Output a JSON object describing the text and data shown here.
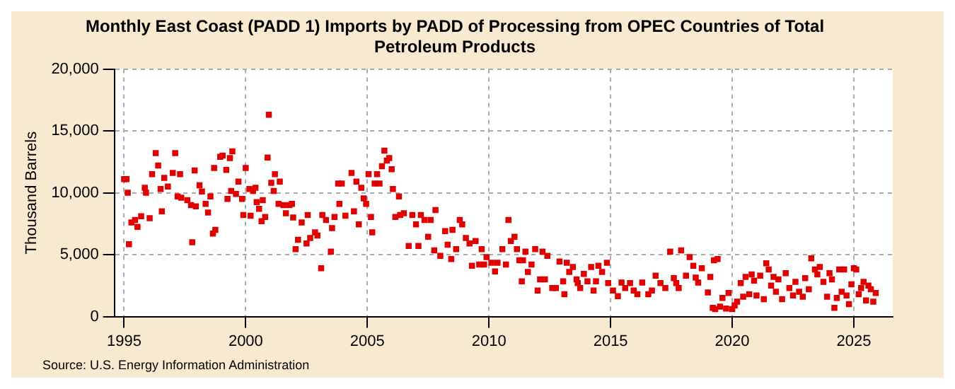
{
  "chart_data": {
    "type": "scatter",
    "title": "Monthly East Coast (PADD 1) Imports by PADD of Processing from OPEC Countries of Total Petroleum Products",
    "ylabel": "Thousand Barrels",
    "annotations": [
      "Source: U.S. Energy Information Administration"
    ],
    "x": [
      1995.0,
      1995.1,
      1995.15,
      1995.2,
      1995.3,
      1995.45,
      1995.55,
      1995.7,
      1995.85,
      1995.9,
      1996.05,
      1996.15,
      1996.3,
      1996.4,
      1996.5,
      1996.55,
      1996.65,
      1996.8,
      1997.0,
      1997.1,
      1997.2,
      1997.3,
      1997.35,
      1997.6,
      1997.75,
      1997.8,
      1997.9,
      1997.95,
      1998.1,
      1998.2,
      1998.35,
      1998.45,
      1998.55,
      1998.65,
      1998.7,
      1998.75,
      1998.95,
      1999.05,
      1999.2,
      1999.25,
      1999.35,
      1999.4,
      1999.45,
      1999.6,
      1999.7,
      1999.85,
      1999.9,
      2000.0,
      2000.15,
      2000.2,
      2000.3,
      2000.4,
      2000.45,
      2000.55,
      2000.65,
      2000.7,
      2000.8,
      2000.9,
      2000.95,
      2001.05,
      2001.15,
      2001.2,
      2001.35,
      2001.4,
      2001.55,
      2001.65,
      2001.8,
      2001.9,
      2001.95,
      2002.05,
      2002.15,
      2002.3,
      2002.5,
      2002.55,
      2002.65,
      2002.85,
      2002.95,
      2003.1,
      2003.15,
      2003.3,
      2003.5,
      2003.55,
      2003.65,
      2003.8,
      2003.85,
      2003.95,
      2004.1,
      2004.35,
      2004.45,
      2004.55,
      2004.65,
      2004.75,
      2004.85,
      2004.95,
      2005.05,
      2005.15,
      2005.2,
      2005.3,
      2005.4,
      2005.5,
      2005.6,
      2005.7,
      2005.8,
      2005.9,
      2006.0,
      2006.05,
      2006.15,
      2006.3,
      2006.35,
      2006.5,
      2006.7,
      2006.85,
      2007.0,
      2007.1,
      2007.2,
      2007.35,
      2007.5,
      2007.6,
      2007.75,
      2007.8,
      2008.0,
      2008.2,
      2008.3,
      2008.45,
      2008.5,
      2008.65,
      2008.8,
      2008.9,
      2009.05,
      2009.2,
      2009.3,
      2009.45,
      2009.6,
      2009.7,
      2009.8,
      2009.9,
      2010.1,
      2010.25,
      2010.35,
      2010.55,
      2010.7,
      2010.8,
      2010.9,
      2011.05,
      2011.15,
      2011.25,
      2011.35,
      2011.4,
      2011.5,
      2011.6,
      2011.75,
      2011.9,
      2012.0,
      2012.1,
      2012.2,
      2012.3,
      2012.4,
      2012.6,
      2012.75,
      2012.9,
      2013.05,
      2013.1,
      2013.2,
      2013.3,
      2013.45,
      2013.6,
      2013.65,
      2013.75,
      2013.9,
      2014.05,
      2014.2,
      2014.3,
      2014.4,
      2014.5,
      2014.65,
      2014.85,
      2014.9,
      2015.1,
      2015.3,
      2015.45,
      2015.6,
      2015.8,
      2015.95,
      2016.1,
      2016.3,
      2016.55,
      2016.7,
      2016.85,
      2017.05,
      2017.25,
      2017.45,
      2017.6,
      2017.7,
      2017.8,
      2017.9,
      2018.1,
      2018.25,
      2018.4,
      2018.5,
      2018.6,
      2018.75,
      2019.0,
      2019.1,
      2019.2,
      2019.25,
      2019.3,
      2019.4,
      2019.5,
      2019.6,
      2019.75,
      2019.85,
      2020.0,
      2020.1,
      2020.2,
      2020.35,
      2020.45,
      2020.55,
      2020.7,
      2020.8,
      2020.9,
      2021.0,
      2021.15,
      2021.3,
      2021.4,
      2021.5,
      2021.6,
      2021.7,
      2021.8,
      2021.9,
      2022.05,
      2022.2,
      2022.35,
      2022.5,
      2022.6,
      2022.75,
      2022.9,
      2023.0,
      2023.15,
      2023.25,
      2023.4,
      2023.5,
      2023.6,
      2023.75,
      2023.9,
      2024.0,
      2024.1,
      2024.2,
      2024.3,
      2024.4,
      2024.5,
      2024.6,
      2024.7,
      2024.8,
      2024.9,
      2025.0,
      2025.1,
      2025.2,
      2025.3,
      2025.4,
      2025.5,
      2025.6,
      2025.7,
      2025.8,
      2025.9
    ],
    "series": [
      {
        "color": "#e00000",
        "values": [
          11100,
          11100,
          10000,
          5850,
          7600,
          7800,
          7250,
          8100,
          10400,
          10000,
          7950,
          11500,
          13200,
          12200,
          10300,
          8500,
          11200,
          10500,
          11600,
          13200,
          9700,
          11500,
          9600,
          9400,
          9000,
          6000,
          11800,
          8900,
          10600,
          10100,
          9100,
          8400,
          9700,
          6700,
          12000,
          7000,
          12900,
          13000,
          11850,
          9500,
          12800,
          10150,
          13350,
          9900,
          10900,
          9500,
          8200,
          12000,
          10300,
          8150,
          10150,
          10400,
          9250,
          8700,
          7700,
          9400,
          8050,
          12850,
          16300,
          10800,
          10150,
          11500,
          9100,
          10900,
          9000,
          8350,
          9000,
          9100,
          8000,
          5450,
          6200,
          7600,
          5900,
          8200,
          6350,
          6800,
          6550,
          3900,
          8200,
          7800,
          5250,
          7150,
          8050,
          10750,
          9100,
          10750,
          8150,
          11600,
          8500,
          10900,
          7450,
          10400,
          9550,
          9100,
          11500,
          8050,
          6800,
          10750,
          11500,
          10750,
          12150,
          13400,
          12600,
          12800,
          11900,
          10300,
          8050,
          9700,
          8200,
          8350,
          5700,
          8200,
          7450,
          5700,
          8200,
          7800,
          6450,
          7800,
          5350,
          8600,
          4900,
          6900,
          5800,
          4650,
          7000,
          5450,
          7800,
          7450,
          6350,
          5900,
          4100,
          6100,
          4200,
          5450,
          4200,
          4800,
          4350,
          3650,
          4350,
          5450,
          4200,
          7800,
          6100,
          6450,
          5450,
          4550,
          2850,
          4550,
          5250,
          3600,
          4200,
          5450,
          2100,
          3000,
          5250,
          3000,
          4900,
          2300,
          2300,
          4450,
          2850,
          1800,
          4350,
          3600,
          4000,
          3000,
          2700,
          2300,
          3450,
          2850,
          4000,
          2100,
          2850,
          4100,
          3600,
          4350,
          2700,
          2100,
          1650,
          2750,
          2300,
          2700,
          2100,
          1800,
          2750,
          1800,
          2100,
          3300,
          2700,
          2300,
          5250,
          3100,
          2700,
          2300,
          5350,
          3300,
          4800,
          4100,
          3150,
          2750,
          3900,
          1950,
          3200,
          700,
          4550,
          600,
          4650,
          800,
          1500,
          650,
          1900,
          600,
          900,
          1200,
          2700,
          1600,
          3200,
          1800,
          3400,
          2900,
          1700,
          3300,
          1400,
          4300,
          3800,
          2500,
          3200,
          2000,
          3000,
          1400,
          3500,
          2300,
          1700,
          2800,
          2000,
          1600,
          3100,
          2200,
          4700,
          3800,
          3400,
          4000,
          2800,
          1600,
          3500,
          3000,
          700,
          1500,
          3800,
          2000,
          3800,
          1700,
          1000,
          2600,
          3900,
          3800,
          1800,
          2300,
          2800,
          1300,
          2500,
          2200,
          1200,
          1900
        ]
      }
    ],
    "xlim": [
      1994.6,
      2026.6
    ],
    "xticks": [
      1995,
      2000,
      2005,
      2010,
      2015,
      2020,
      2025
    ],
    "ylim": [
      0,
      20000
    ],
    "yticks": [
      {
        "value": 0,
        "label": "0"
      },
      {
        "value": 5000,
        "label": "5,000"
      },
      {
        "value": 10000,
        "label": "10,000"
      },
      {
        "value": 15000,
        "label": "15,000"
      },
      {
        "value": 20000,
        "label": "20,000"
      }
    ],
    "grid": true,
    "legend": false,
    "marker": "square"
  }
}
